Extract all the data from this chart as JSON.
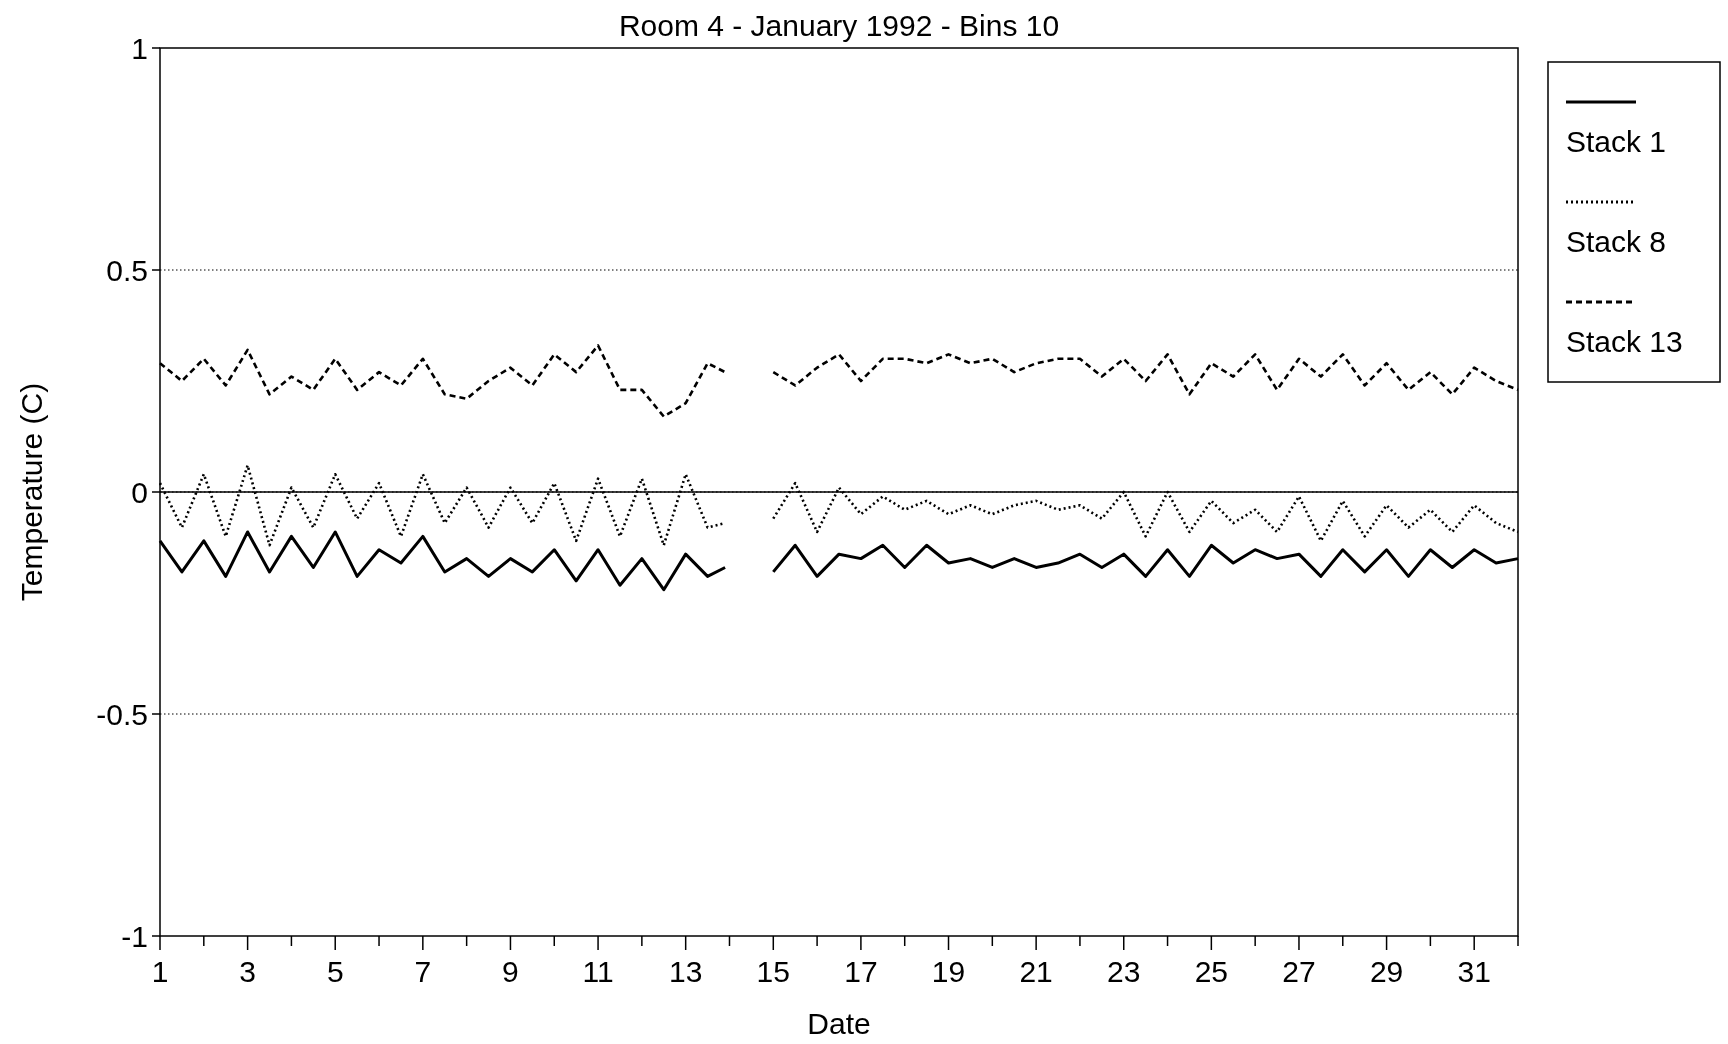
{
  "chart_data": {
    "type": "line",
    "title": "Room 4 - January 1992 - Bins 10",
    "xlabel": "Date",
    "ylabel": "Temperature (C)",
    "x": [
      1,
      1.5,
      2,
      2.5,
      3,
      3.5,
      4,
      4.5,
      5,
      5.5,
      6,
      6.5,
      7,
      7.5,
      8,
      8.5,
      9,
      9.5,
      10,
      10.5,
      11,
      11.5,
      12,
      12.5,
      13,
      13.5,
      13.9,
      14.5,
      15,
      15.5,
      16,
      16.5,
      17,
      17.5,
      18,
      18.5,
      19,
      19.5,
      20,
      20.5,
      21,
      21.5,
      22,
      22.5,
      23,
      23.5,
      24,
      24.5,
      25,
      25.5,
      26,
      26.5,
      27,
      27.5,
      28,
      28.5,
      29,
      29.5,
      30,
      30.5,
      31,
      31.5,
      32
    ],
    "series": [
      {
        "name": "Stack 1",
        "color": "#000000",
        "line_style": "solid",
        "values": [
          -0.11,
          -0.18,
          -0.11,
          -0.19,
          -0.09,
          -0.18,
          -0.1,
          -0.17,
          -0.09,
          -0.19,
          -0.13,
          -0.16,
          -0.1,
          -0.18,
          -0.15,
          -0.19,
          -0.15,
          -0.18,
          -0.13,
          -0.2,
          -0.13,
          -0.21,
          -0.15,
          -0.22,
          -0.14,
          -0.19,
          -0.17,
          null,
          -0.18,
          -0.12,
          -0.19,
          -0.14,
          -0.15,
          -0.12,
          -0.17,
          -0.12,
          -0.16,
          -0.15,
          -0.17,
          -0.15,
          -0.17,
          -0.16,
          -0.14,
          -0.17,
          -0.14,
          -0.19,
          -0.13,
          -0.19,
          -0.12,
          -0.16,
          -0.13,
          -0.15,
          -0.14,
          -0.19,
          -0.13,
          -0.18,
          -0.13,
          -0.19,
          -0.13,
          -0.17,
          -0.13,
          -0.16,
          -0.15
        ]
      },
      {
        "name": "Stack 8",
        "color": "#000000",
        "line_style": "dotted",
        "values": [
          0.02,
          -0.08,
          0.04,
          -0.1,
          0.06,
          -0.12,
          0.01,
          -0.08,
          0.04,
          -0.06,
          0.02,
          -0.1,
          0.04,
          -0.07,
          0.01,
          -0.08,
          0.01,
          -0.07,
          0.02,
          -0.11,
          0.03,
          -0.1,
          0.03,
          -0.12,
          0.04,
          -0.08,
          -0.07,
          null,
          -0.06,
          0.02,
          -0.09,
          0.01,
          -0.05,
          -0.01,
          -0.04,
          -0.02,
          -0.05,
          -0.03,
          -0.05,
          -0.03,
          -0.02,
          -0.04,
          -0.03,
          -0.06,
          0.0,
          -0.1,
          0.0,
          -0.09,
          -0.02,
          -0.07,
          -0.04,
          -0.09,
          -0.01,
          -0.11,
          -0.02,
          -0.1,
          -0.03,
          -0.08,
          -0.04,
          -0.09,
          -0.03,
          -0.07,
          -0.09
        ]
      },
      {
        "name": "Stack 13",
        "color": "#000000",
        "line_style": "dashed",
        "values": [
          0.29,
          0.25,
          0.3,
          0.24,
          0.32,
          0.22,
          0.26,
          0.23,
          0.3,
          0.23,
          0.27,
          0.24,
          0.3,
          0.22,
          0.21,
          0.25,
          0.28,
          0.24,
          0.31,
          0.27,
          0.33,
          0.23,
          0.23,
          0.17,
          0.2,
          0.29,
          0.27,
          null,
          0.27,
          0.24,
          0.28,
          0.31,
          0.25,
          0.3,
          0.3,
          0.29,
          0.31,
          0.29,
          0.3,
          0.27,
          0.29,
          0.3,
          0.3,
          0.26,
          0.3,
          0.25,
          0.31,
          0.22,
          0.29,
          0.26,
          0.31,
          0.23,
          0.3,
          0.26,
          0.31,
          0.24,
          0.29,
          0.23,
          0.27,
          0.22,
          0.28,
          0.25,
          0.23
        ]
      }
    ],
    "xlim": [
      1,
      32
    ],
    "xticks": [
      1,
      {
        "value": 2,
        "label": null
      },
      3,
      {
        "value": 4,
        "label": null
      },
      5,
      {
        "value": 6,
        "label": null
      },
      7,
      {
        "value": 8,
        "label": null
      },
      9,
      {
        "value": 10,
        "label": null
      },
      11,
      {
        "value": 12,
        "label": null
      },
      13,
      {
        "value": 14,
        "label": null
      },
      15,
      {
        "value": 16,
        "label": null
      },
      17,
      {
        "value": 18,
        "label": null
      },
      19,
      {
        "value": 20,
        "label": null
      },
      21,
      {
        "value": 22,
        "label": null
      },
      23,
      {
        "value": 24,
        "label": null
      },
      25,
      {
        "value": 26,
        "label": null
      },
      27,
      {
        "value": 28,
        "label": null
      },
      29,
      {
        "value": 30,
        "label": null
      },
      31,
      {
        "value": 32,
        "label": null
      }
    ],
    "ylim": [
      -1,
      1
    ],
    "yticks": [
      -1,
      -0.5,
      0,
      0.5,
      1
    ],
    "grid": "y",
    "ref_lines": [
      {
        "axis": "y",
        "value": 0,
        "color": "#000000",
        "line_style": "solid"
      }
    ],
    "legend": "top right"
  }
}
